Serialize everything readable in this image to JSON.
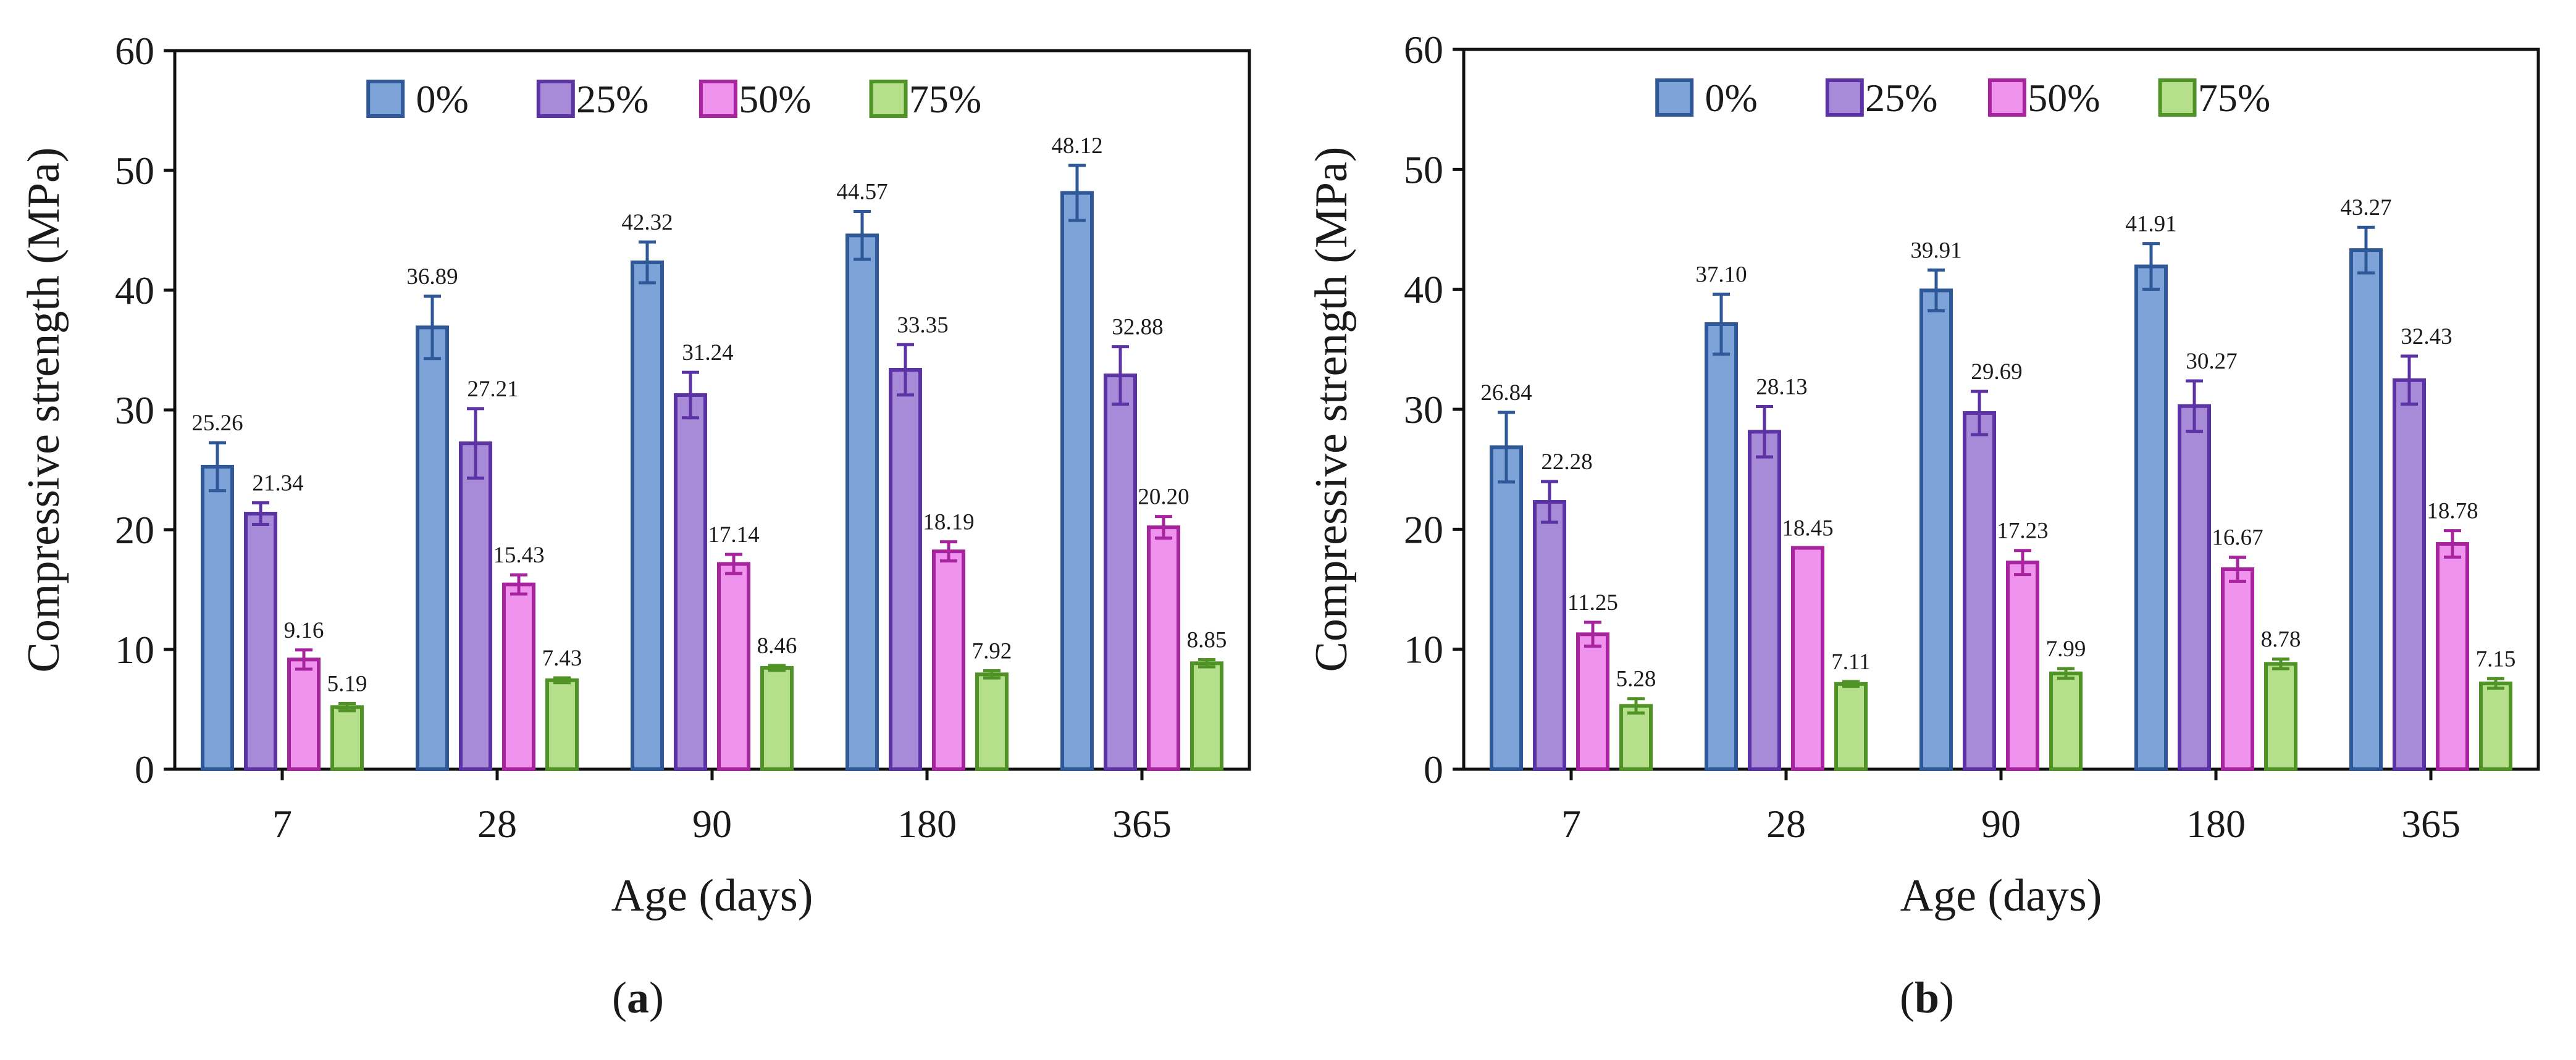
{
  "chart_data": [
    {
      "type": "bar",
      "panel_label": "a",
      "categories": [
        "7",
        "28",
        "90",
        "180",
        "365"
      ],
      "xlabel": "Age (days)",
      "ylabel": "Compressive strength (MPa)",
      "ylim": [
        0,
        60
      ],
      "yticks": [
        "0",
        "10",
        "20",
        "30",
        "40",
        "50",
        "60"
      ],
      "legend_position": "top",
      "series": [
        {
          "name": "0%",
          "values": [
            25.26,
            36.89,
            42.32,
            44.57,
            48.12
          ],
          "errors": [
            2.0,
            2.6,
            1.7,
            2.0,
            2.3
          ],
          "labels": [
            "25.26",
            "36.89",
            "42.32",
            "44.57",
            "48.12"
          ]
        },
        {
          "name": "25%",
          "values": [
            21.34,
            27.21,
            31.24,
            33.35,
            32.88
          ],
          "errors": [
            0.9,
            2.9,
            1.9,
            2.1,
            2.4
          ],
          "labels": [
            "21.34",
            "27.21",
            "31.24",
            "33.35",
            "32.88"
          ]
        },
        {
          "name": "50%",
          "values": [
            9.16,
            15.43,
            17.14,
            18.19,
            20.2
          ],
          "errors": [
            0.8,
            0.8,
            0.8,
            0.8,
            0.9
          ],
          "labels": [
            "9.16",
            "15.43",
            "17.14",
            "18.19",
            "20.20"
          ]
        },
        {
          "name": "75%",
          "values": [
            5.19,
            7.43,
            8.46,
            7.92,
            8.85
          ],
          "errors": [
            0.3,
            0.2,
            0.2,
            0.3,
            0.3
          ],
          "labels": [
            "5.19",
            "7.43",
            "8.46",
            "7.92",
            "8.85"
          ]
        }
      ]
    },
    {
      "type": "bar",
      "panel_label": "b",
      "categories": [
        "7",
        "28",
        "90",
        "180",
        "365"
      ],
      "xlabel": "Age (days)",
      "ylabel": "Compressive strength (MPa)",
      "ylim": [
        0,
        60
      ],
      "yticks": [
        "0",
        "10",
        "20",
        "30",
        "40",
        "50",
        "60"
      ],
      "legend_position": "top",
      "series": [
        {
          "name": "0%",
          "values": [
            26.84,
            37.1,
            39.91,
            41.91,
            43.27
          ],
          "errors": [
            2.9,
            2.5,
            1.7,
            1.9,
            1.9
          ],
          "labels": [
            "26.84",
            "37.10",
            "39.91",
            "41.91",
            "43.27"
          ]
        },
        {
          "name": "25%",
          "values": [
            22.28,
            28.13,
            29.69,
            30.27,
            32.43
          ],
          "errors": [
            1.7,
            2.1,
            1.8,
            2.1,
            2.0
          ],
          "labels": [
            "22.28",
            "28.13",
            "29.69",
            "30.27",
            "32.43"
          ]
        },
        {
          "name": "50%",
          "values": [
            11.25,
            18.45,
            17.23,
            16.67,
            18.78
          ],
          "errors": [
            1.0,
            0.0,
            1.0,
            1.0,
            1.1
          ],
          "labels": [
            "11.25",
            "18.45",
            "17.23",
            "16.67",
            "18.78"
          ]
        },
        {
          "name": "75%",
          "values": [
            5.28,
            7.11,
            7.99,
            8.78,
            7.15
          ],
          "errors": [
            0.6,
            0.2,
            0.4,
            0.4,
            0.4
          ],
          "labels": [
            "5.28",
            "7.11",
            "7.99",
            "8.78",
            "7.15"
          ]
        }
      ]
    }
  ],
  "colors": {
    "series_fill": [
      "#7ea3d8",
      "#a78bd8",
      "#ef93ee",
      "#b5df8a"
    ],
    "series_stroke": [
      "#2e5897",
      "#5c33a4",
      "#a8249f",
      "#4f9226"
    ],
    "axis": "#111111"
  }
}
